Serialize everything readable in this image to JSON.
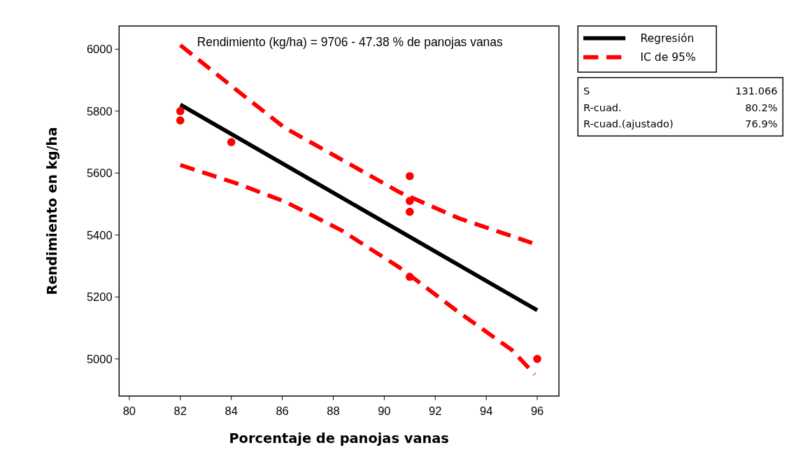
{
  "chart_data": {
    "type": "scatter",
    "xlabel": "Porcentaje de panojas vanas",
    "ylabel": "Rendimiento en kg/ha",
    "xlim": [
      79.6,
      96.85
    ],
    "ylim": [
      4880,
      6075
    ],
    "xticks": [
      80,
      82,
      84,
      86,
      88,
      90,
      92,
      94,
      96
    ],
    "yticks": [
      5000,
      5200,
      5400,
      5600,
      5800,
      6000
    ],
    "legend": "top right",
    "marker": "none",
    "series": [
      {
        "marker": "circle",
        "color": "#ff0000",
        "x": [
          82,
          82,
          84,
          91,
          91,
          91,
          91,
          96
        ],
        "values": [
          5800,
          5770,
          5700,
          5590,
          5510,
          5475,
          5265,
          5000
        ]
      },
      {
        "type": "line",
        "name": "Regresión",
        "color": "#000000",
        "line_style": "solid",
        "x": [
          82,
          96
        ],
        "values": [
          5821,
          5157
        ]
      },
      {
        "type": "line",
        "name": "IC de 95%",
        "color": "#ff0000",
        "line_style": "dashed",
        "x": [
          82,
          84.1,
          86.1,
          88.1,
          90.6,
          92.9,
          95.8
        ],
        "values": [
          6013,
          5875,
          5746,
          5654,
          5538,
          5455,
          5374
        ]
      },
      {
        "type": "line",
        "color": "#ff0000",
        "line_style": "dashed",
        "x": [
          82,
          84.2,
          86.1,
          88.3,
          90.6,
          92.8,
          95,
          95.9
        ],
        "values": [
          5626,
          5567,
          5508,
          5416,
          5295,
          5158,
          5029,
          4950
        ]
      }
    ],
    "annotations": [
      "Rendimiento (kg/ha) =  9706 - 47.38 % de panojas vanas",
      "S",
      "131.066",
      "R-cuad.",
      "80.2%",
      "R-cuad.(ajustado)",
      "76.9%"
    ]
  }
}
